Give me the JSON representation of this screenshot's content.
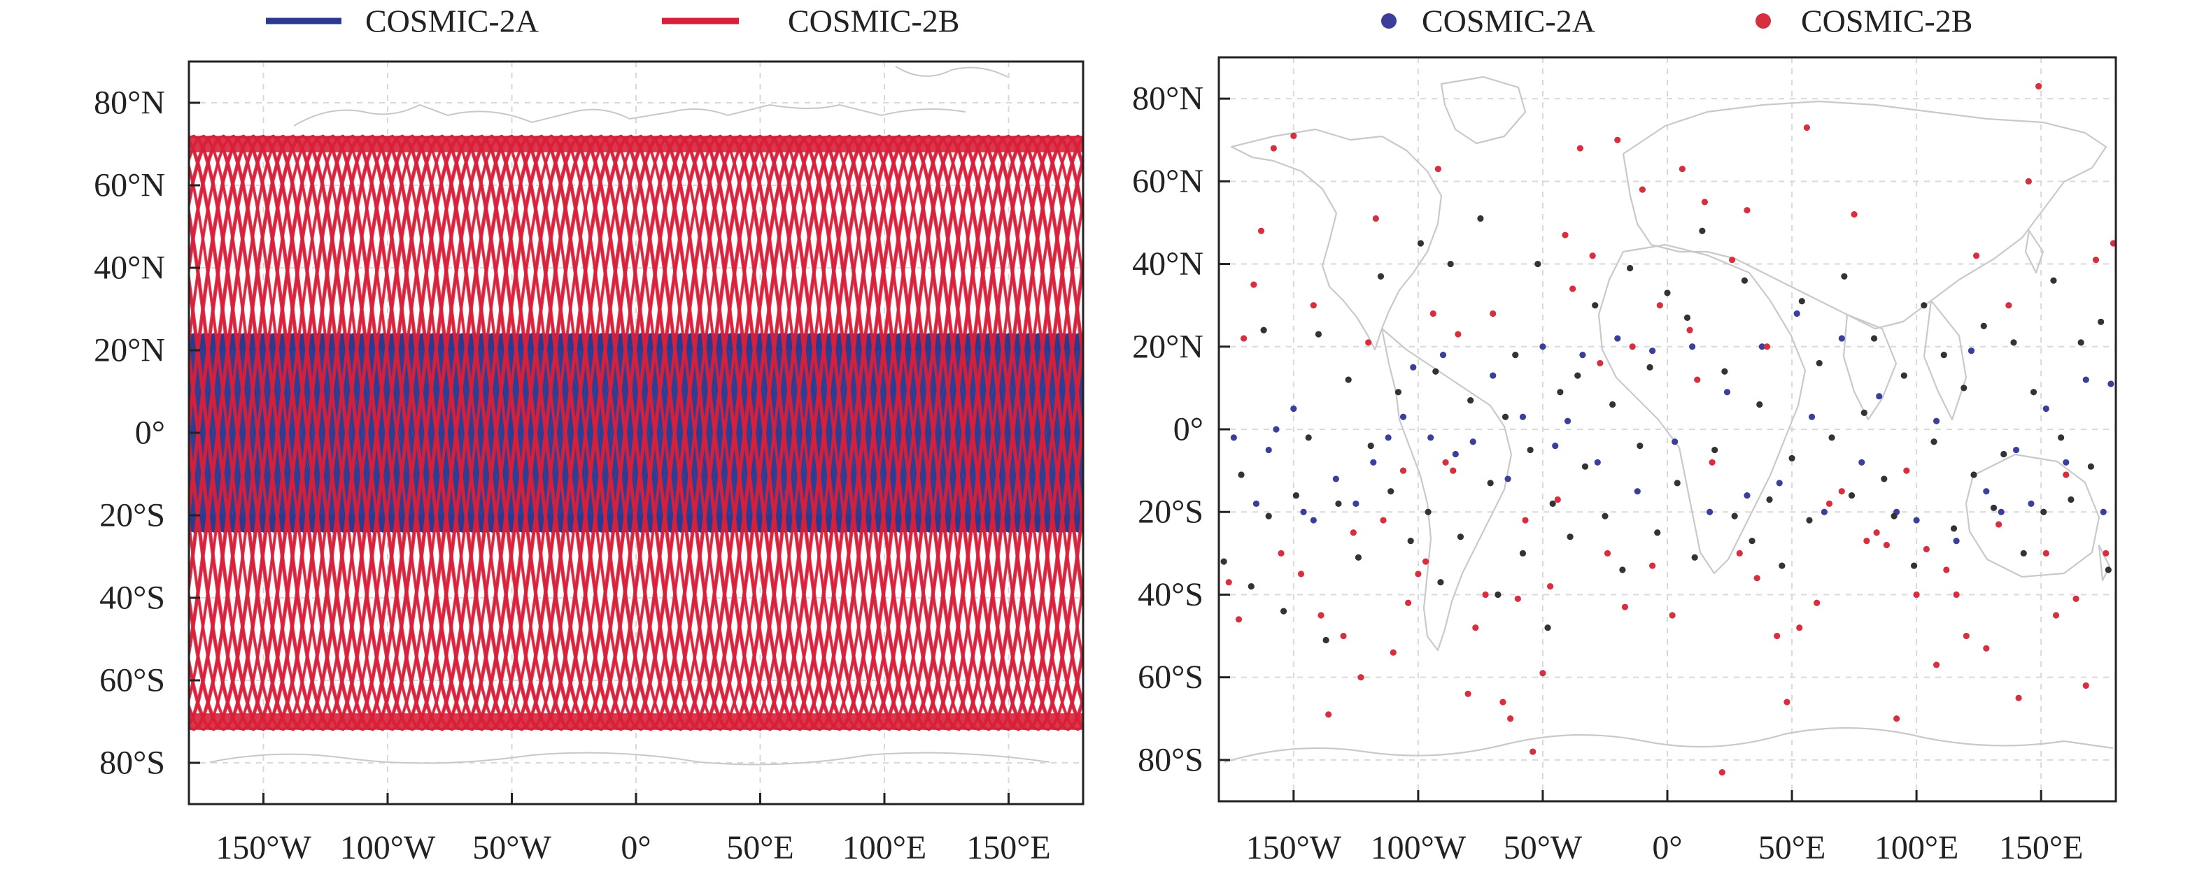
{
  "chart_data": [
    {
      "type": "line",
      "title": "",
      "xlabel": "",
      "ylabel": "",
      "xlim": [
        -180,
        180
      ],
      "ylim": [
        -90,
        90
      ],
      "x_ticks": [
        -150,
        -100,
        -50,
        0,
        50,
        100,
        150
      ],
      "x_tick_labels": [
        "150°W",
        "100°W",
        "50°W",
        "0°",
        "50°E",
        "100°E",
        "150°E"
      ],
      "y_ticks": [
        80,
        60,
        40,
        20,
        0,
        -20,
        -40,
        -60,
        -80
      ],
      "y_tick_labels": [
        "80°N",
        "60°N",
        "40°N",
        "20°N",
        "0°",
        "20°S",
        "40°S",
        "60°S",
        "80°S"
      ],
      "legend_position": "top",
      "grid": true,
      "basemap": "world coastlines",
      "series": [
        {
          "name": "COSMIC-2A",
          "color": "#2b3a8f",
          "inclination_deg": 24,
          "ground_track_count": 40
        },
        {
          "name": "COSMIC-2B",
          "color": "#d8203a",
          "inclination_deg": 72,
          "ground_track_count": 30
        }
      ]
    },
    {
      "type": "scatter",
      "title": "",
      "xlabel": "",
      "ylabel": "",
      "xlim": [
        -180,
        180
      ],
      "ylim": [
        -90,
        90
      ],
      "x_ticks": [
        -150,
        -100,
        -50,
        0,
        50,
        100,
        150
      ],
      "x_tick_labels": [
        "150°W",
        "100°W",
        "50°W",
        "0°",
        "50°E",
        "100°E",
        "150°E"
      ],
      "y_ticks": [
        80,
        60,
        40,
        20,
        0,
        -20,
        -40,
        -60,
        -80
      ],
      "y_tick_labels": [
        "80°N",
        "60°N",
        "40°N",
        "20°N",
        "0°",
        "20°S",
        "40°S",
        "60°S",
        "80°S"
      ],
      "legend_position": "top",
      "grid": true,
      "basemap": "world coastlines",
      "series": [
        {
          "name": "COSMIC-2A",
          "color": "#3b3f9a",
          "points": [
            [
              -174,
              -2
            ],
            [
              -165,
              -18
            ],
            [
              -160,
              -5
            ],
            [
              -157,
              0
            ],
            [
              -150,
              5
            ],
            [
              -146,
              -20
            ],
            [
              -142,
              -22
            ],
            [
              -133,
              -12
            ],
            [
              -125,
              -18
            ],
            [
              -118,
              -8
            ],
            [
              -112,
              -2
            ],
            [
              -106,
              3
            ],
            [
              -102,
              15
            ],
            [
              -95,
              -2
            ],
            [
              -90,
              18
            ],
            [
              -85,
              -6
            ],
            [
              -78,
              -3
            ],
            [
              -70,
              13
            ],
            [
              -64,
              -12
            ],
            [
              -58,
              3
            ],
            [
              -50,
              20
            ],
            [
              -45,
              -4
            ],
            [
              -40,
              2
            ],
            [
              -34,
              18
            ],
            [
              -28,
              -8
            ],
            [
              -20,
              22
            ],
            [
              -12,
              -15
            ],
            [
              -6,
              19
            ],
            [
              3,
              -3
            ],
            [
              10,
              20
            ],
            [
              17,
              -20
            ],
            [
              24,
              9
            ],
            [
              32,
              -16
            ],
            [
              38,
              20
            ],
            [
              45,
              -13
            ],
            [
              52,
              28
            ],
            [
              58,
              3
            ],
            [
              63,
              -20
            ],
            [
              70,
              22
            ],
            [
              78,
              -8
            ],
            [
              85,
              8
            ],
            [
              92,
              -20
            ],
            [
              100,
              -22
            ],
            [
              108,
              2
            ],
            [
              116,
              -27
            ],
            [
              122,
              19
            ],
            [
              128,
              -15
            ],
            [
              134,
              -20
            ],
            [
              140,
              -5
            ],
            [
              146,
              -18
            ],
            [
              152,
              5
            ],
            [
              160,
              -8
            ],
            [
              168,
              12
            ],
            [
              175,
              -20
            ],
            [
              178,
              11
            ]
          ]
        },
        {
          "name": "COSMIC-2B",
          "color": "#d63040",
          "points": [
            [
              -176,
              -37
            ],
            [
              -172,
              -46
            ],
            [
              -170,
              22
            ],
            [
              -166,
              35
            ],
            [
              -163,
              48
            ],
            [
              -158,
              68
            ],
            [
              -155,
              -30
            ],
            [
              -150,
              71
            ],
            [
              -147,
              -35
            ],
            [
              -142,
              30
            ],
            [
              -139,
              -45
            ],
            [
              -136,
              -69
            ],
            [
              -130,
              -50
            ],
            [
              -126,
              -25
            ],
            [
              -123,
              -60
            ],
            [
              -120,
              21
            ],
            [
              -117,
              51
            ],
            [
              -114,
              -22
            ],
            [
              -110,
              -54
            ],
            [
              -106,
              -10
            ],
            [
              -104,
              -42
            ],
            [
              -100,
              -35
            ],
            [
              -97,
              -32
            ],
            [
              -94,
              28
            ],
            [
              -92,
              63
            ],
            [
              -89,
              -8
            ],
            [
              -86,
              -10
            ],
            [
              -84,
              23
            ],
            [
              -80,
              -64
            ],
            [
              -77,
              -48
            ],
            [
              -73,
              -40
            ],
            [
              -70,
              28
            ],
            [
              -66,
              -66
            ],
            [
              -63,
              -70
            ],
            [
              -60,
              -41
            ],
            [
              -57,
              -22
            ],
            [
              -54,
              -78
            ],
            [
              -50,
              -59
            ],
            [
              -47,
              -38
            ],
            [
              -44,
              -17
            ],
            [
              -41,
              47
            ],
            [
              -38,
              34
            ],
            [
              -35,
              68
            ],
            [
              -30,
              42
            ],
            [
              -27,
              16
            ],
            [
              -24,
              -30
            ],
            [
              -20,
              70
            ],
            [
              -17,
              -43
            ],
            [
              -14,
              20
            ],
            [
              -10,
              58
            ],
            [
              -6,
              -33
            ],
            [
              -3,
              30
            ],
            [
              2,
              -45
            ],
            [
              6,
              63
            ],
            [
              9,
              24
            ],
            [
              12,
              12
            ],
            [
              15,
              55
            ],
            [
              18,
              -8
            ],
            [
              22,
              -83
            ],
            [
              26,
              41
            ],
            [
              29,
              -30
            ],
            [
              32,
              53
            ],
            [
              36,
              -36
            ],
            [
              40,
              20
            ],
            [
              44,
              -50
            ],
            [
              48,
              -66
            ],
            [
              53,
              -48
            ],
            [
              56,
              73
            ],
            [
              60,
              -42
            ],
            [
              65,
              -18
            ],
            [
              70,
              -15
            ],
            [
              75,
              52
            ],
            [
              80,
              -27
            ],
            [
              84,
              -25
            ],
            [
              88,
              -28
            ],
            [
              92,
              -70
            ],
            [
              96,
              -10
            ],
            [
              100,
              -40
            ],
            [
              104,
              -29
            ],
            [
              108,
              -57
            ],
            [
              112,
              -34
            ],
            [
              116,
              -40
            ],
            [
              120,
              -50
            ],
            [
              124,
              42
            ],
            [
              128,
              -53
            ],
            [
              133,
              -23
            ],
            [
              137,
              30
            ],
            [
              141,
              -65
            ],
            [
              145,
              60
            ],
            [
              149,
              83
            ],
            [
              152,
              -30
            ],
            [
              156,
              -45
            ],
            [
              160,
              -11
            ],
            [
              164,
              -41
            ],
            [
              168,
              -62
            ],
            [
              172,
              41
            ],
            [
              176,
              -30
            ],
            [
              179,
              45
            ]
          ]
        },
        {
          "name": "",
          "color": "#333333",
          "points": [
            [
              -178,
              -32
            ],
            [
              -171,
              -11
            ],
            [
              -167,
              -38
            ],
            [
              -162,
              24
            ],
            [
              -160,
              -21
            ],
            [
              -154,
              -44
            ],
            [
              -149,
              -16
            ],
            [
              -144,
              -2
            ],
            [
              -140,
              23
            ],
            [
              -137,
              -51
            ],
            [
              -132,
              -18
            ],
            [
              -128,
              12
            ],
            [
              -124,
              -31
            ],
            [
              -119,
              -4
            ],
            [
              -115,
              37
            ],
            [
              -111,
              -15
            ],
            [
              -108,
              9
            ],
            [
              -103,
              -27
            ],
            [
              -99,
              45
            ],
            [
              -96,
              -20
            ],
            [
              -93,
              14
            ],
            [
              -91,
              -37
            ],
            [
              -87,
              40
            ],
            [
              -83,
              -26
            ],
            [
              -79,
              7
            ],
            [
              -75,
              51
            ],
            [
              -71,
              -13
            ],
            [
              -68,
              -40
            ],
            [
              -65,
              3
            ],
            [
              -61,
              18
            ],
            [
              -58,
              -30
            ],
            [
              -55,
              -5
            ],
            [
              -52,
              40
            ],
            [
              -48,
              -48
            ],
            [
              -46,
              -18
            ],
            [
              -43,
              9
            ],
            [
              -39,
              -26
            ],
            [
              -36,
              13
            ],
            [
              -33,
              -9
            ],
            [
              -29,
              30
            ],
            [
              -25,
              -21
            ],
            [
              -22,
              6
            ],
            [
              -18,
              -34
            ],
            [
              -15,
              39
            ],
            [
              -11,
              -4
            ],
            [
              -7,
              15
            ],
            [
              -4,
              -25
            ],
            [
              0,
              33
            ],
            [
              4,
              -13
            ],
            [
              8,
              27
            ],
            [
              11,
              -31
            ],
            [
              14,
              48
            ],
            [
              19,
              -5
            ],
            [
              23,
              14
            ],
            [
              27,
              -21
            ],
            [
              31,
              36
            ],
            [
              34,
              -27
            ],
            [
              37,
              6
            ],
            [
              41,
              -17
            ],
            [
              46,
              -33
            ],
            [
              50,
              -7
            ],
            [
              54,
              31
            ],
            [
              57,
              -22
            ],
            [
              61,
              16
            ],
            [
              66,
              -2
            ],
            [
              71,
              37
            ],
            [
              74,
              -16
            ],
            [
              79,
              4
            ],
            [
              83,
              22
            ],
            [
              87,
              -12
            ],
            [
              91,
              -21
            ],
            [
              95,
              13
            ],
            [
              99,
              -33
            ],
            [
              103,
              30
            ],
            [
              107,
              -3
            ],
            [
              111,
              18
            ],
            [
              115,
              -24
            ],
            [
              119,
              10
            ],
            [
              123,
              -11
            ],
            [
              127,
              25
            ],
            [
              131,
              -19
            ],
            [
              135,
              -6
            ],
            [
              139,
              21
            ],
            [
              143,
              -30
            ],
            [
              147,
              9
            ],
            [
              151,
              -20
            ],
            [
              155,
              36
            ],
            [
              158,
              -2
            ],
            [
              162,
              -17
            ],
            [
              166,
              21
            ],
            [
              170,
              -9
            ],
            [
              174,
              26
            ],
            [
              177,
              -34
            ]
          ]
        }
      ]
    }
  ]
}
